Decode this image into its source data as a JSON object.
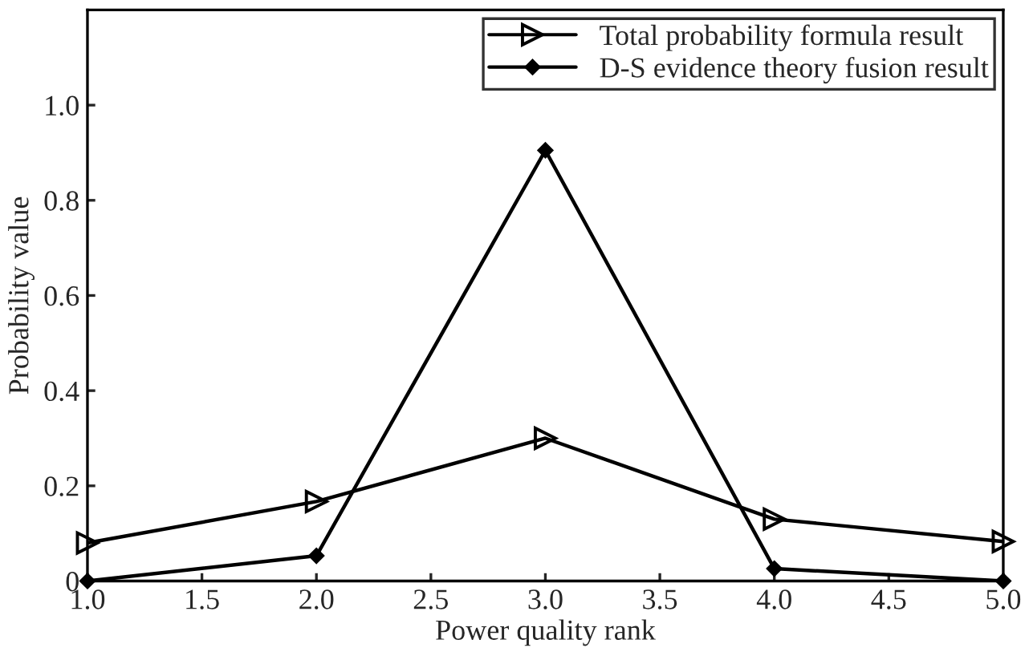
{
  "chart_data": {
    "type": "line",
    "xlabel": "Power quality rank",
    "ylabel": "Probability value",
    "x": [
      1,
      2,
      3,
      4,
      5
    ],
    "series": [
      {
        "name": "Total probability formula result",
        "color": "#000000",
        "marker": "triangle",
        "values": [
          0.08,
          0.167,
          0.3,
          0.13,
          0.083
        ]
      },
      {
        "name": "D-S evidence theory fusion result",
        "color": "#000000",
        "marker": "diamond",
        "values": [
          0.0,
          0.053,
          0.905,
          0.026,
          0.0
        ]
      }
    ],
    "xlim": [
      1,
      5
    ],
    "xticks": [
      {
        "value": 1,
        "label": "1.0"
      },
      1.5,
      {
        "value": 2,
        "label": "2.0"
      },
      2.5,
      {
        "value": 3,
        "label": "3.0"
      },
      3.5,
      {
        "value": 4,
        "label": "4.0"
      },
      4.5,
      {
        "value": 5,
        "label": "5.0"
      }
    ],
    "ylim": [
      0,
      1.2
    ],
    "yticks": [
      0,
      0.2,
      0.4,
      0.6,
      0.8,
      {
        "value": 1,
        "label": "1.0"
      }
    ],
    "grid": false,
    "legend": "top right",
    "line_style": "solid"
  }
}
